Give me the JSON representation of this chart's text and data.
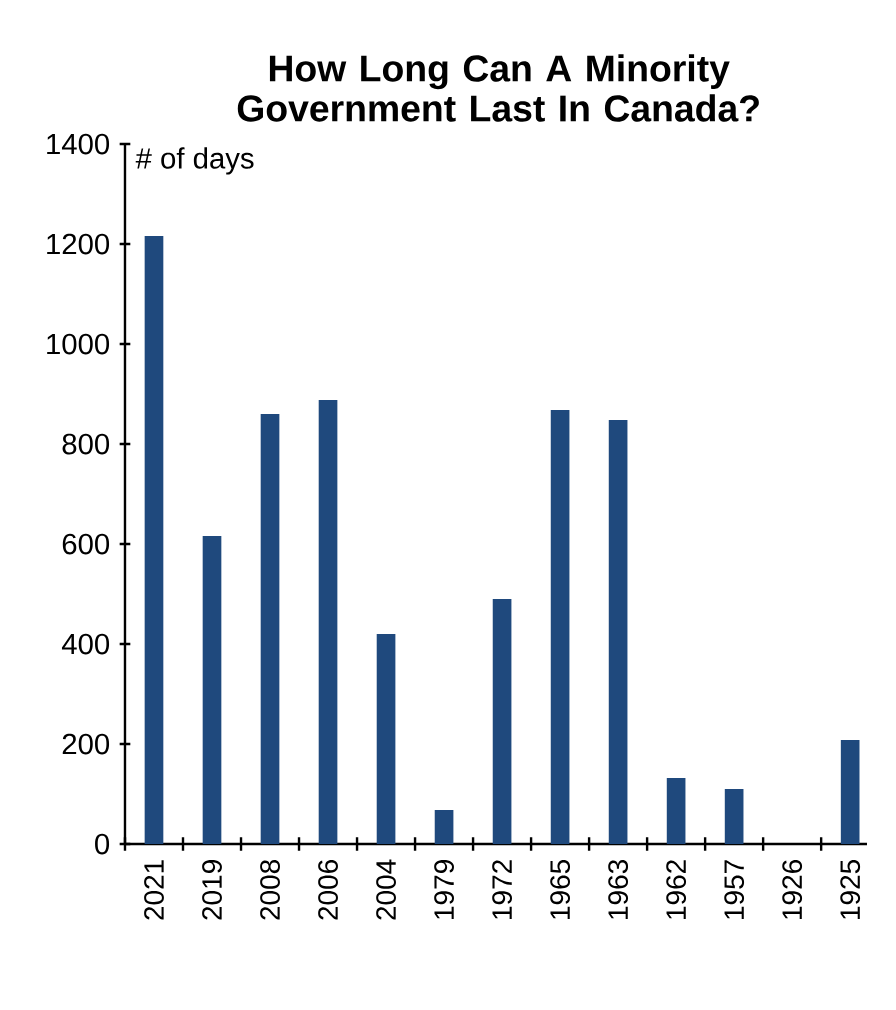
{
  "chart_data": {
    "type": "bar",
    "title": "How Long Can A Minority Government Last In Canada?",
    "ylabel": "# of days",
    "categories": [
      "2021",
      "2019",
      "2008",
      "2006",
      "2004",
      "1979",
      "1972",
      "1965",
      "1963",
      "1962",
      "1957",
      "1926",
      "1925"
    ],
    "values": [
      1216,
      616,
      860,
      888,
      420,
      68,
      490,
      868,
      848,
      132,
      110,
      0,
      208
    ],
    "color": "#1f497d",
    "ylim": [
      0,
      1400
    ],
    "yticks": [
      0,
      200,
      400,
      600,
      800,
      1000,
      1200,
      1400
    ]
  }
}
